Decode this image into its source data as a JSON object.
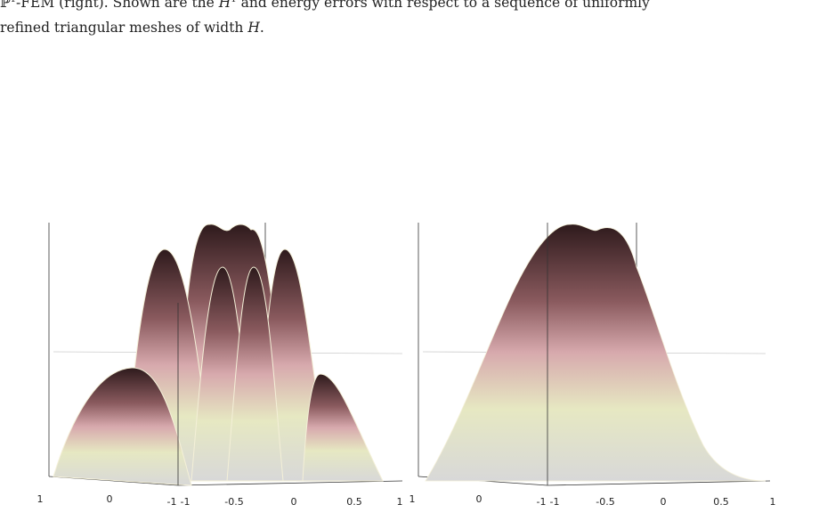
{
  "caption": {
    "line1": [
      "ℙ",
      "1",
      "-FEM (right). Shown are the ",
      "H",
      "1",
      " and energy errors with respect to a sequence of uniformly"
    ],
    "line2": [
      "refined triangular meshes of width ",
      "H",
      "."
    ]
  },
  "panels": [
    {
      "ticks": [
        "1",
        "0",
        "-1",
        "-1",
        "-0.5",
        "0",
        "0.5",
        "1"
      ]
    },
    {
      "ticks": [
        "1",
        "0",
        "-1",
        "-1",
        "-0.5",
        "0",
        "0.5",
        "1"
      ]
    }
  ]
}
